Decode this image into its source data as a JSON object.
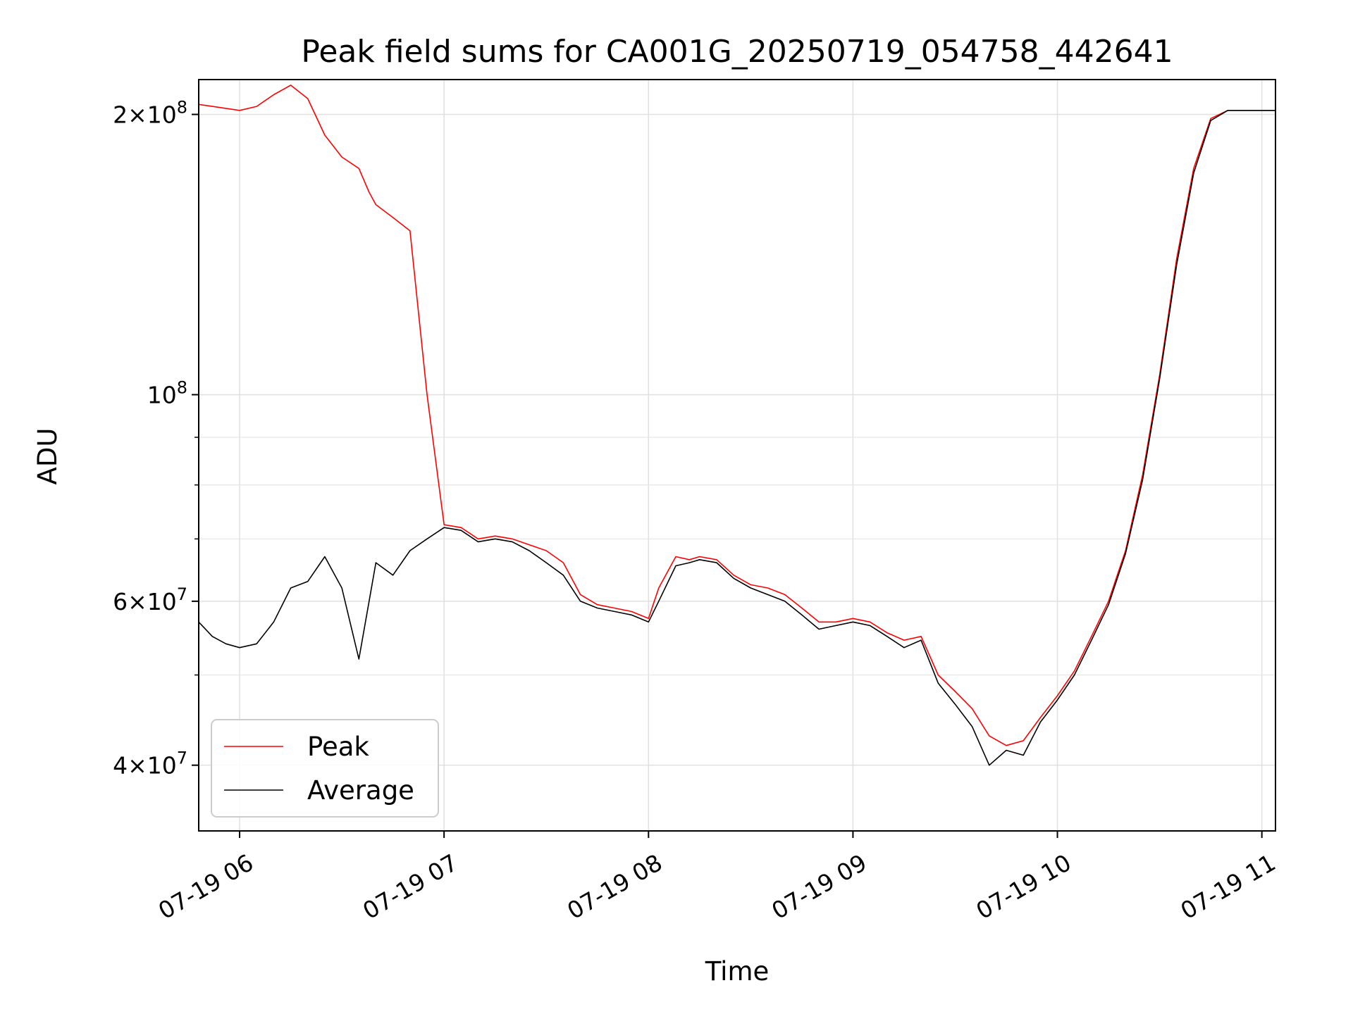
{
  "chart_data": {
    "type": "line",
    "title": "Peak field sums for CA001G_20250719_054758_442641",
    "xlabel": "Time",
    "ylabel": "ADU",
    "yscale": "log",
    "xlim": [
      "2025-07-19 05:48",
      "2025-07-19 11:04"
    ],
    "ylim": [
      34000000,
      218000000
    ],
    "grid": true,
    "legend_position": "lower-left",
    "x_ticks": [
      {
        "value": "2025-07-19 06:00",
        "label": "07-19 06"
      },
      {
        "value": "2025-07-19 07:00",
        "label": "07-19 07"
      },
      {
        "value": "2025-07-19 08:00",
        "label": "07-19 08"
      },
      {
        "value": "2025-07-19 09:00",
        "label": "07-19 09"
      },
      {
        "value": "2025-07-19 10:00",
        "label": "07-19 10"
      },
      {
        "value": "2025-07-19 11:00",
        "label": "07-19 11"
      }
    ],
    "y_ticks": [
      {
        "value": 40000000,
        "base": "4",
        "times": "×",
        "power": "10",
        "exp": "7"
      },
      {
        "value": 60000000,
        "base": "6",
        "times": "×",
        "power": "10",
        "exp": "7"
      },
      {
        "value": 100000000,
        "base": "",
        "times": "",
        "power": "10",
        "exp": "8"
      },
      {
        "value": 200000000,
        "base": "2",
        "times": "×",
        "power": "10",
        "exp": "8"
      }
    ],
    "y_minor_ticks": [
      30000000,
      50000000,
      70000000,
      80000000,
      90000000
    ],
    "series": [
      {
        "name": "Peak",
        "color": "#ff0000",
        "x": [
          "2025-07-19 05:48",
          "2025-07-19 05:52",
          "2025-07-19 05:56",
          "2025-07-19 06:00",
          "2025-07-19 06:05",
          "2025-07-19 06:10",
          "2025-07-19 06:15",
          "2025-07-19 06:20",
          "2025-07-19 06:25",
          "2025-07-19 06:30",
          "2025-07-19 06:35",
          "2025-07-19 06:38",
          "2025-07-19 06:40",
          "2025-07-19 06:45",
          "2025-07-19 06:50",
          "2025-07-19 06:55",
          "2025-07-19 07:00",
          "2025-07-19 07:05",
          "2025-07-19 07:10",
          "2025-07-19 07:15",
          "2025-07-19 07:20",
          "2025-07-19 07:25",
          "2025-07-19 07:30",
          "2025-07-19 07:35",
          "2025-07-19 07:40",
          "2025-07-19 07:45",
          "2025-07-19 07:50",
          "2025-07-19 07:55",
          "2025-07-19 08:00",
          "2025-07-19 08:03",
          "2025-07-19 08:08",
          "2025-07-19 08:12",
          "2025-07-19 08:15",
          "2025-07-19 08:20",
          "2025-07-19 08:25",
          "2025-07-19 08:30",
          "2025-07-19 08:35",
          "2025-07-19 08:40",
          "2025-07-19 08:45",
          "2025-07-19 08:50",
          "2025-07-19 08:55",
          "2025-07-19 09:00",
          "2025-07-19 09:05",
          "2025-07-19 09:10",
          "2025-07-19 09:15",
          "2025-07-19 09:20",
          "2025-07-19 09:25",
          "2025-07-19 09:30",
          "2025-07-19 09:35",
          "2025-07-19 09:40",
          "2025-07-19 09:45",
          "2025-07-19 09:50",
          "2025-07-19 09:55",
          "2025-07-19 10:00",
          "2025-07-19 10:05",
          "2025-07-19 10:10",
          "2025-07-19 10:15",
          "2025-07-19 10:20",
          "2025-07-19 10:25",
          "2025-07-19 10:30",
          "2025-07-19 10:35",
          "2025-07-19 10:40",
          "2025-07-19 10:45",
          "2025-07-19 10:50",
          "2025-07-19 10:55",
          "2025-07-19 11:00",
          "2025-07-19 11:04"
        ],
        "values": [
          205000000,
          204000000,
          203000000,
          202000000,
          204000000,
          210000000,
          215000000,
          208000000,
          190000000,
          180000000,
          175000000,
          165000000,
          160000000,
          155000000,
          150000000,
          100000000,
          72500000,
          72000000,
          70000000,
          70500000,
          70000000,
          69000000,
          68000000,
          66000000,
          61000000,
          59500000,
          59000000,
          58500000,
          57500000,
          62000000,
          67000000,
          66500000,
          67000000,
          66500000,
          64000000,
          62500000,
          62000000,
          61000000,
          59000000,
          57000000,
          57000000,
          57500000,
          57000000,
          55500000,
          54500000,
          55000000,
          50000000,
          48000000,
          46000000,
          43000000,
          42000000,
          42500000,
          45000000,
          47500000,
          50500000,
          55000000,
          60000000,
          68000000,
          82000000,
          105000000,
          140000000,
          175000000,
          198000000,
          202000000,
          202000000,
          202000000,
          202000000
        ]
      },
      {
        "name": "Average",
        "color": "#000000",
        "x": [
          "2025-07-19 05:48",
          "2025-07-19 05:52",
          "2025-07-19 05:56",
          "2025-07-19 06:00",
          "2025-07-19 06:05",
          "2025-07-19 06:10",
          "2025-07-19 06:15",
          "2025-07-19 06:20",
          "2025-07-19 06:25",
          "2025-07-19 06:30",
          "2025-07-19 06:35",
          "2025-07-19 06:38",
          "2025-07-19 06:40",
          "2025-07-19 06:45",
          "2025-07-19 06:50",
          "2025-07-19 06:55",
          "2025-07-19 07:00",
          "2025-07-19 07:05",
          "2025-07-19 07:10",
          "2025-07-19 07:15",
          "2025-07-19 07:20",
          "2025-07-19 07:25",
          "2025-07-19 07:30",
          "2025-07-19 07:35",
          "2025-07-19 07:40",
          "2025-07-19 07:45",
          "2025-07-19 07:50",
          "2025-07-19 07:55",
          "2025-07-19 08:00",
          "2025-07-19 08:03",
          "2025-07-19 08:08",
          "2025-07-19 08:12",
          "2025-07-19 08:15",
          "2025-07-19 08:20",
          "2025-07-19 08:25",
          "2025-07-19 08:30",
          "2025-07-19 08:35",
          "2025-07-19 08:40",
          "2025-07-19 08:45",
          "2025-07-19 08:50",
          "2025-07-19 08:55",
          "2025-07-19 09:00",
          "2025-07-19 09:05",
          "2025-07-19 09:10",
          "2025-07-19 09:15",
          "2025-07-19 09:20",
          "2025-07-19 09:25",
          "2025-07-19 09:30",
          "2025-07-19 09:35",
          "2025-07-19 09:40",
          "2025-07-19 09:45",
          "2025-07-19 09:50",
          "2025-07-19 09:55",
          "2025-07-19 10:00",
          "2025-07-19 10:05",
          "2025-07-19 10:10",
          "2025-07-19 10:15",
          "2025-07-19 10:20",
          "2025-07-19 10:25",
          "2025-07-19 10:30",
          "2025-07-19 10:35",
          "2025-07-19 10:40",
          "2025-07-19 10:45",
          "2025-07-19 10:50",
          "2025-07-19 10:55",
          "2025-07-19 11:00",
          "2025-07-19 11:04"
        ],
        "values": [
          57000000,
          55000000,
          54000000,
          53500000,
          54000000,
          57000000,
          62000000,
          63000000,
          67000000,
          62000000,
          52000000,
          60000000,
          66000000,
          64000000,
          68000000,
          70000000,
          72000000,
          71500000,
          69500000,
          70000000,
          69500000,
          68000000,
          66000000,
          64000000,
          60000000,
          59000000,
          58500000,
          58000000,
          57000000,
          60000000,
          65500000,
          66000000,
          66500000,
          66000000,
          63500000,
          62000000,
          61000000,
          60000000,
          58000000,
          56000000,
          56500000,
          57000000,
          56500000,
          55000000,
          53500000,
          54500000,
          49000000,
          46500000,
          44000000,
          40000000,
          41500000,
          41000000,
          44500000,
          47000000,
          50000000,
          54500000,
          59500000,
          67500000,
          81000000,
          104000000,
          138000000,
          173000000,
          197000000,
          202000000,
          202000000,
          202000000,
          202000000
        ]
      }
    ]
  }
}
